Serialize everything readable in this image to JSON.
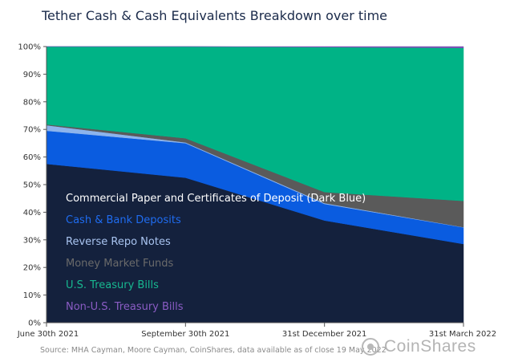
{
  "title": "Tether Cash & Cash Equivalents Breakdown over time",
  "source": "Source: MHA Cayman, Moore Cayman, CoinShares, data available as of close 19 May 2022",
  "logo": {
    "text": "CoinShares",
    "icon": "coinshares-logo-icon"
  },
  "chart_data": {
    "type": "area",
    "stacked": true,
    "title": "Tether Cash & Cash Equivalents Breakdown over time",
    "categories": [
      "June 30th 2021",
      "September 30th 2021",
      "31st December 2021",
      "31st March 2022"
    ],
    "ylim": [
      0,
      100
    ],
    "yticks": [
      "0%",
      "10%",
      "20%",
      "30%",
      "40%",
      "50%",
      "60%",
      "70%",
      "80%",
      "90%",
      "100%"
    ],
    "series": [
      {
        "name": "Commercial Paper and Certificates of Deposit (Dark Blue)",
        "color": "#14213d",
        "legend_color": "#ffffff",
        "values": [
          57.5,
          52.5,
          37.0,
          28.5
        ]
      },
      {
        "name": "Cash & Bank Deposits",
        "color": "#0a5ce0",
        "legend_color": "#1f6cf0",
        "values": [
          12.0,
          12.5,
          6.0,
          6.0
        ]
      },
      {
        "name": "Reverse Repo Notes",
        "color": "#8db4ec",
        "legend_color": "#a9c4f0",
        "values": [
          2.0,
          0.3,
          0.3,
          0.1
        ]
      },
      {
        "name": "Money Market Funds",
        "color": "#5a5a5a",
        "legend_color": "#6a6a6a",
        "values": [
          0.3,
          1.5,
          4.0,
          9.5
        ]
      },
      {
        "name": "U.S. Treasury Bills",
        "color": "#00b386",
        "legend_color": "#17b890",
        "values": [
          28.2,
          33.2,
          52.5,
          55.4
        ]
      },
      {
        "name": "Non-U.S. Treasury Bills",
        "color": "#7b52b5",
        "legend_color": "#8a5cc4",
        "values": [
          0.0,
          0.0,
          0.2,
          0.5
        ]
      }
    ],
    "grid": false,
    "legend": "inside-left"
  }
}
